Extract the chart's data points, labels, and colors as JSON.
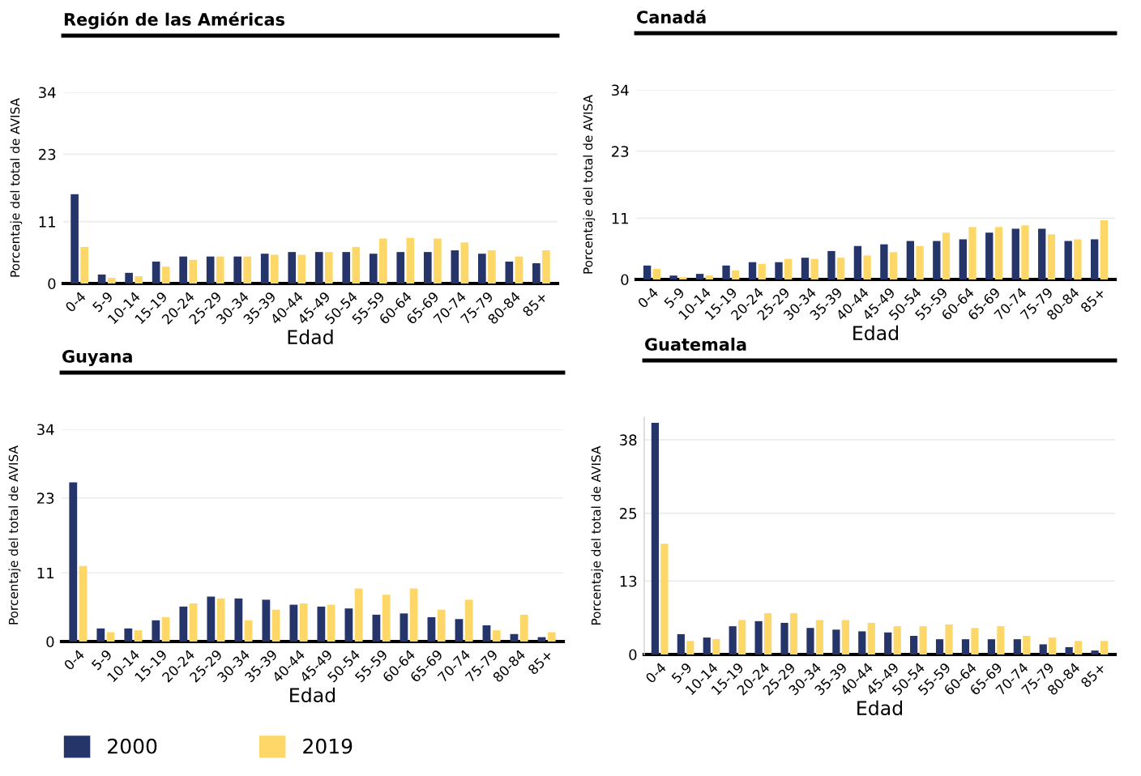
{
  "chart_data": [
    {
      "type": "bar",
      "title": "Región de las Américas",
      "xlabel": "Edad",
      "ylabel": "Porcentaje del total de AVISA",
      "categories": [
        "0-4",
        "5-9",
        "10-14",
        "15-19",
        "20-24",
        "25-29",
        "30-34",
        "35-39",
        "40-44",
        "45-49",
        "50-54",
        "55-59",
        "60-64",
        "65-69",
        "70-74",
        "75-79",
        "80-84",
        "85+"
      ],
      "series": [
        {
          "name": "2000",
          "color": "#253469",
          "values": [
            15.9,
            1.6,
            1.9,
            3.9,
            4.8,
            4.8,
            4.8,
            5.3,
            5.6,
            5.6,
            5.6,
            5.3,
            5.6,
            5.6,
            5.9,
            5.3,
            3.9,
            3.6
          ]
        },
        {
          "name": "2019",
          "color": "#fdd768",
          "values": [
            6.5,
            1.0,
            1.3,
            3.0,
            4.2,
            4.8,
            4.8,
            5.1,
            5.1,
            5.6,
            6.5,
            8.0,
            8.1,
            8.0,
            7.3,
            5.9,
            4.8,
            5.9
          ]
        }
      ],
      "ylim": [
        0,
        34
      ],
      "yticks": [
        0,
        11,
        23,
        34
      ],
      "grid": "y",
      "legend": "bottom"
    },
    {
      "type": "bar",
      "title": "Canadá",
      "xlabel": "Edad",
      "ylabel": "Porcentaje del total de AVISA",
      "categories": [
        "0-4",
        "5-9",
        "10-14",
        "15-19",
        "20-24",
        "25-29",
        "30-34",
        "35-39",
        "40-44",
        "45-49",
        "50-54",
        "55-59",
        "60-64",
        "65-69",
        "70-74",
        "75-79",
        "80-84",
        "85+"
      ],
      "series": [
        {
          "name": "2000",
          "color": "#253469",
          "values": [
            2.5,
            0.7,
            1.0,
            2.5,
            3.1,
            3.1,
            3.9,
            5.1,
            6.0,
            6.3,
            6.9,
            6.9,
            7.2,
            8.4,
            9.1,
            9.1,
            6.9,
            7.2
          ]
        },
        {
          "name": "2019",
          "color": "#fdd768",
          "values": [
            1.9,
            0.4,
            0.7,
            1.6,
            2.8,
            3.7,
            3.7,
            3.9,
            4.3,
            4.9,
            6.0,
            8.4,
            9.4,
            9.4,
            9.7,
            8.1,
            7.2,
            10.6
          ]
        }
      ],
      "ylim": [
        0,
        34
      ],
      "yticks": [
        0,
        11,
        23,
        34
      ],
      "grid": "y",
      "legend": "bottom"
    },
    {
      "type": "bar",
      "title": "Guyana",
      "xlabel": "Edad",
      "ylabel": "Porcentaje del total de AVISA",
      "categories": [
        "0-4",
        "5-9",
        "10-14",
        "15-19",
        "20-24",
        "25-29",
        "30-34",
        "35-39",
        "40-44",
        "45-49",
        "50-54",
        "55-59",
        "60-64",
        "65-69",
        "70-74",
        "75-79",
        "80-84",
        "85+"
      ],
      "series": [
        {
          "name": "2000",
          "color": "#253469",
          "values": [
            25.5,
            2.1,
            2.1,
            3.4,
            5.6,
            7.2,
            6.9,
            6.7,
            5.9,
            5.6,
            5.3,
            4.3,
            4.5,
            3.9,
            3.6,
            2.6,
            1.2,
            0.7
          ]
        },
        {
          "name": "2019",
          "color": "#fdd768",
          "values": [
            12.1,
            1.5,
            1.8,
            3.9,
            6.1,
            6.9,
            3.4,
            5.1,
            6.1,
            5.9,
            8.5,
            7.5,
            8.5,
            5.1,
            6.7,
            1.8,
            4.3,
            1.5
          ]
        }
      ],
      "ylim": [
        0,
        34
      ],
      "yticks": [
        0,
        11,
        23,
        34
      ],
      "grid": "y",
      "legend": "bottom"
    },
    {
      "type": "bar",
      "title": "Guatemala",
      "xlabel": "Edad",
      "ylabel": "Porcentaje del total de AVISA",
      "categories": [
        "0-4",
        "5-9",
        "10-14",
        "15-19",
        "20-24",
        "25-29",
        "30-34",
        "35-39",
        "40-44",
        "45-49",
        "50-54",
        "55-59",
        "60-64",
        "65-69",
        "70-74",
        "75-79",
        "80-84",
        "85+"
      ],
      "series": [
        {
          "name": "2000",
          "color": "#253469",
          "values": [
            41.0,
            3.6,
            3.0,
            5.0,
            5.9,
            5.6,
            4.7,
            4.4,
            4.1,
            3.9,
            3.3,
            2.7,
            2.7,
            2.7,
            2.7,
            1.8,
            1.3,
            0.7
          ]
        },
        {
          "name": "2019",
          "color": "#fdd768",
          "values": [
            19.6,
            2.4,
            2.7,
            6.1,
            7.3,
            7.3,
            6.1,
            6.1,
            5.6,
            5.0,
            5.0,
            5.3,
            4.7,
            5.0,
            3.3,
            3.0,
            2.4,
            2.4
          ]
        }
      ],
      "ylim": [
        0,
        42
      ],
      "yticks": [
        0,
        13,
        25,
        38
      ],
      "grid": "y",
      "legend": "bottom"
    }
  ]
}
